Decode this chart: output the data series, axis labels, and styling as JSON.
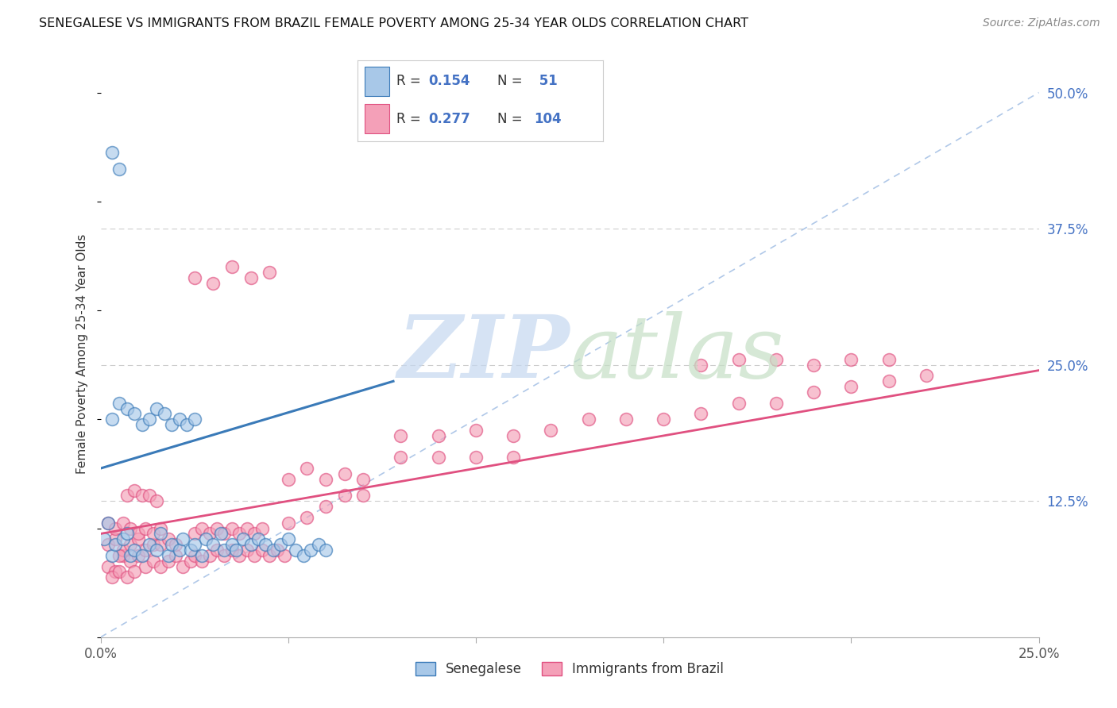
{
  "title": "SENEGALESE VS IMMIGRANTS FROM BRAZIL FEMALE POVERTY AMONG 25-34 YEAR OLDS CORRELATION CHART",
  "source": "Source: ZipAtlas.com",
  "ylabel": "Female Poverty Among 25-34 Year Olds",
  "xlim": [
    0.0,
    0.25
  ],
  "ylim": [
    0.0,
    0.52
  ],
  "color_blue": "#a8c8e8",
  "color_pink": "#f4a0b8",
  "color_blue_line": "#3a7ab8",
  "color_pink_line": "#e05080",
  "color_dashed": "#b0c8e8",
  "blue_line_x0": 0.0,
  "blue_line_y0": 0.155,
  "blue_line_x1": 0.078,
  "blue_line_y1": 0.235,
  "pink_line_x0": 0.0,
  "pink_line_y0": 0.095,
  "pink_line_x1": 0.25,
  "pink_line_y1": 0.245,
  "blue_pts_x": [
    0.003,
    0.008,
    0.001,
    0.002,
    0.004,
    0.006,
    0.007,
    0.009,
    0.011,
    0.013,
    0.015,
    0.016,
    0.018,
    0.019,
    0.021,
    0.022,
    0.024,
    0.025,
    0.027,
    0.028,
    0.03,
    0.032,
    0.033,
    0.035,
    0.036,
    0.038,
    0.04,
    0.042,
    0.044,
    0.046,
    0.048,
    0.05,
    0.052,
    0.054,
    0.056,
    0.058,
    0.06,
    0.003,
    0.005,
    0.007,
    0.009,
    0.011,
    0.013,
    0.015,
    0.017,
    0.019,
    0.021,
    0.023,
    0.025,
    0.005,
    0.003
  ],
  "blue_pts_y": [
    0.075,
    0.075,
    0.09,
    0.105,
    0.085,
    0.09,
    0.095,
    0.08,
    0.075,
    0.085,
    0.08,
    0.095,
    0.075,
    0.085,
    0.08,
    0.09,
    0.08,
    0.085,
    0.075,
    0.09,
    0.085,
    0.095,
    0.08,
    0.085,
    0.08,
    0.09,
    0.085,
    0.09,
    0.085,
    0.08,
    0.085,
    0.09,
    0.08,
    0.075,
    0.08,
    0.085,
    0.08,
    0.2,
    0.215,
    0.21,
    0.205,
    0.195,
    0.2,
    0.21,
    0.205,
    0.195,
    0.2,
    0.195,
    0.2,
    0.43,
    0.445
  ],
  "pink_pts_x": [
    0.002,
    0.004,
    0.006,
    0.008,
    0.01,
    0.012,
    0.014,
    0.016,
    0.018,
    0.02,
    0.022,
    0.024,
    0.002,
    0.004,
    0.006,
    0.008,
    0.01,
    0.012,
    0.014,
    0.016,
    0.018,
    0.02,
    0.002,
    0.004,
    0.006,
    0.008,
    0.01,
    0.012,
    0.014,
    0.016,
    0.025,
    0.027,
    0.029,
    0.031,
    0.033,
    0.035,
    0.037,
    0.039,
    0.041,
    0.043,
    0.045,
    0.047,
    0.049,
    0.025,
    0.027,
    0.029,
    0.031,
    0.033,
    0.035,
    0.037,
    0.039,
    0.041,
    0.043,
    0.05,
    0.055,
    0.06,
    0.065,
    0.07,
    0.05,
    0.055,
    0.06,
    0.065,
    0.07,
    0.08,
    0.09,
    0.1,
    0.11,
    0.08,
    0.09,
    0.1,
    0.11,
    0.12,
    0.13,
    0.14,
    0.15,
    0.16,
    0.17,
    0.18,
    0.19,
    0.2,
    0.21,
    0.22,
    0.16,
    0.17,
    0.18,
    0.19,
    0.2,
    0.21,
    0.025,
    0.03,
    0.035,
    0.04,
    0.045,
    0.005,
    0.007,
    0.009,
    0.011,
    0.013,
    0.015,
    0.003,
    0.005,
    0.007,
    0.009
  ],
  "pink_pts_y": [
    0.065,
    0.06,
    0.075,
    0.07,
    0.075,
    0.065,
    0.07,
    0.065,
    0.07,
    0.075,
    0.065,
    0.07,
    0.085,
    0.09,
    0.08,
    0.085,
    0.09,
    0.08,
    0.085,
    0.085,
    0.09,
    0.085,
    0.105,
    0.1,
    0.105,
    0.1,
    0.095,
    0.1,
    0.095,
    0.1,
    0.075,
    0.07,
    0.075,
    0.08,
    0.075,
    0.08,
    0.075,
    0.08,
    0.075,
    0.08,
    0.075,
    0.08,
    0.075,
    0.095,
    0.1,
    0.095,
    0.1,
    0.095,
    0.1,
    0.095,
    0.1,
    0.095,
    0.1,
    0.105,
    0.11,
    0.12,
    0.13,
    0.13,
    0.145,
    0.155,
    0.145,
    0.15,
    0.145,
    0.165,
    0.165,
    0.165,
    0.165,
    0.185,
    0.185,
    0.19,
    0.185,
    0.19,
    0.2,
    0.2,
    0.2,
    0.205,
    0.215,
    0.215,
    0.225,
    0.23,
    0.235,
    0.24,
    0.25,
    0.255,
    0.255,
    0.25,
    0.255,
    0.255,
    0.33,
    0.325,
    0.34,
    0.33,
    0.335,
    0.075,
    0.13,
    0.135,
    0.13,
    0.13,
    0.125,
    0.055,
    0.06,
    0.055,
    0.06
  ]
}
